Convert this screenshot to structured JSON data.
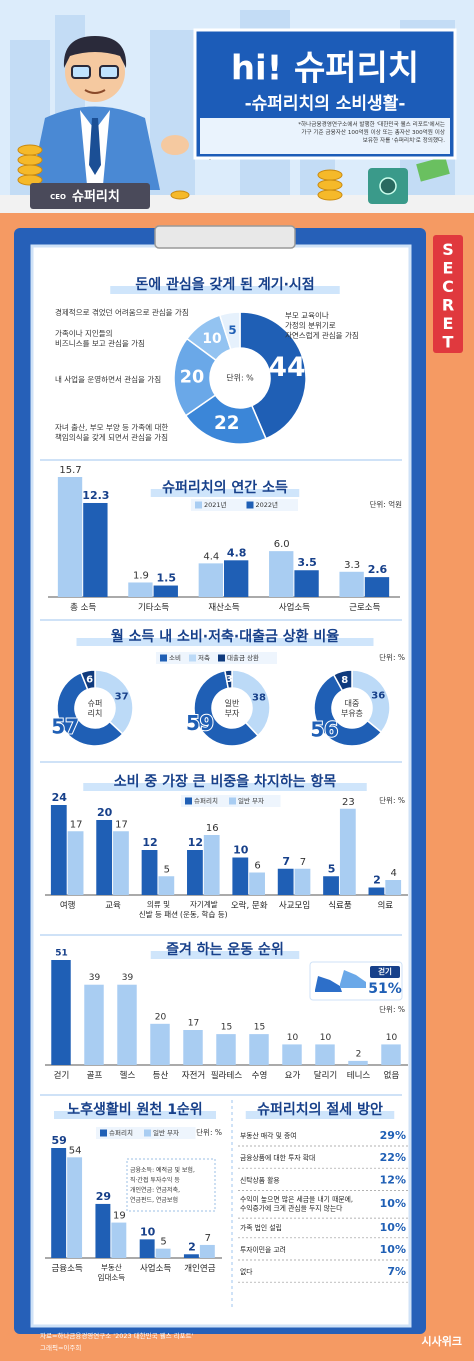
{
  "header": {
    "title": "hi! 슈퍼리치",
    "subtitle": "-슈퍼리치의 소비생활-",
    "note": "*하나금융경영연구소에서 발행한 '대한민국 웰스 리포트'에서는\n가구 기준 금융자산 100억원 이상 또는 총자산 300억원 이상\n보유한 자를 '슈퍼리치'로 정의했다.",
    "badge": "CEO",
    "name": "슈퍼리치",
    "stamp": "SECRET"
  },
  "chart_data": [
    {
      "type": "donut",
      "title": "돈에 관심을 갖게 된 계기·시점",
      "center_label": "단위: %",
      "categories": [
        "부모 교육이나\n가정의 분위기로\n자연스럽게 관심을 가짐",
        "자녀 출산, 부모 부양 등 가족에 대한\n책임의식을 갖게 되면서 관심을 가짐",
        "내 사업을 운영하면서 관심을 가짐",
        "가족이나 지인들의\n비즈니스를 보고 관심을 가짐",
        "경제적으로 겪었던 어려움으로 관심을 가짐"
      ],
      "values": [
        44,
        22,
        20,
        10,
        5
      ],
      "colors": [
        "#1f5fb5",
        "#3b86d8",
        "#6aa8e8",
        "#93c3f1",
        "#e6f1fc"
      ]
    },
    {
      "type": "bar",
      "title": "슈퍼리치의 연간 소득",
      "unit": "단위: 억원",
      "categories": [
        "총 소득",
        "기타소득",
        "재산소득",
        "사업소득",
        "근로소득"
      ],
      "series": [
        {
          "name": "2021년",
          "color": "#a9cdf2",
          "values": [
            15.7,
            1.9,
            4.4,
            6.0,
            3.3
          ],
          "value_labels": [
            "15.7",
            "1.9",
            "4.4",
            "6.0",
            "3.3"
          ]
        },
        {
          "name": "2022년",
          "color": "#1f5fb5",
          "values": [
            12.3,
            1.5,
            4.8,
            3.5,
            2.6
          ]
        }
      ]
    },
    {
      "type": "donut",
      "title": "월 소득 내 소비·저축·대출금 상환 비율",
      "unit": "단위: %",
      "categories": [
        "슈퍼\n리치",
        "일반\n부자",
        "대중\n부유층"
      ],
      "series": [
        {
          "name": "소비",
          "color": "#1f5fb5",
          "values": [
            57,
            59,
            56
          ]
        },
        {
          "name": "저축",
          "color": "#bcdaf7",
          "values": [
            37,
            38,
            36
          ]
        },
        {
          "name": "대출금 상환",
          "color": "#0f3a7d",
          "values": [
            6,
            3,
            8
          ]
        }
      ]
    },
    {
      "type": "bar",
      "title": "소비 중 가장 큰 비중을 차지하는 항목",
      "unit": "단위: %",
      "categories": [
        "여행",
        "교육",
        "의류 및\n신발 등 패션",
        "자기계발\n(운동, 학습 등)",
        "오락, 문화",
        "사교모임",
        "식료품",
        "의료"
      ],
      "series": [
        {
          "name": "슈퍼리치",
          "color": "#1f5fb5",
          "values": [
            24,
            20,
            12,
            12,
            10,
            7,
            5,
            2
          ]
        },
        {
          "name": "일반 부자",
          "color": "#a9cdf2",
          "values": [
            17,
            17,
            5,
            16,
            6,
            7,
            23,
            4
          ]
        }
      ]
    },
    {
      "type": "bar",
      "title": "즐겨 하는 운동 순위",
      "unit": "단위: %",
      "categories": [
        "걷기",
        "골프",
        "헬스",
        "등산",
        "자전거",
        "필라테스",
        "수영",
        "요가",
        "달리기",
        "테니스",
        "없음"
      ],
      "values": [
        51,
        39,
        39,
        20,
        17,
        15,
        15,
        10,
        10,
        2,
        10
      ],
      "colors": [
        "#1f5fb5",
        "#a9cdf2",
        "#a9cdf2",
        "#a9cdf2",
        "#a9cdf2",
        "#a9cdf2",
        "#a9cdf2",
        "#a9cdf2",
        "#a9cdf2",
        "#a9cdf2",
        "#a9cdf2"
      ],
      "callout": {
        "label": "걷기",
        "value": "51%"
      }
    },
    {
      "type": "bar",
      "title": "노후생활비 원천 1순위",
      "unit": "단위: %",
      "categories": [
        "금융소득",
        "부동산\n임대소득",
        "사업소득",
        "개인연금"
      ],
      "series": [
        {
          "name": "슈퍼리치",
          "color": "#1f5fb5",
          "values": [
            59,
            29,
            10,
            2
          ]
        },
        {
          "name": "일반 부자",
          "color": "#a9cdf2",
          "values": [
            54,
            19,
            5,
            7
          ]
        }
      ],
      "note": "금융소득: 예적금 및 보험,\n직·간접 투자수익 등\n개인연금: 연금저축,\n연금펀드, 연금보험"
    },
    {
      "type": "ranking",
      "title": "슈퍼리치의 절세 방안",
      "categories": [
        "부동산 매각 및 증여",
        "금융상품에 대한 투자 확대",
        "신탁상품 활용",
        "수익이 높으면 많은 세금을 내기 때문에,\n수익증가에 크게 관심을 두지 않는다",
        "가족 법인 설립",
        "투자이민을 고려",
        "없다"
      ],
      "values": [
        29,
        22,
        12,
        10,
        10,
        10,
        7
      ],
      "value_labels": [
        "29%",
        "22%",
        "12%",
        "10%",
        "10%",
        "10%",
        "7%"
      ],
      "color": "#1f5fb5"
    }
  ],
  "footer": {
    "source": "자료=하나금융경영연구소 '2023 대한민국 웰스 리포트'",
    "credit": "그래픽=이주희",
    "logo": "시사위크"
  }
}
